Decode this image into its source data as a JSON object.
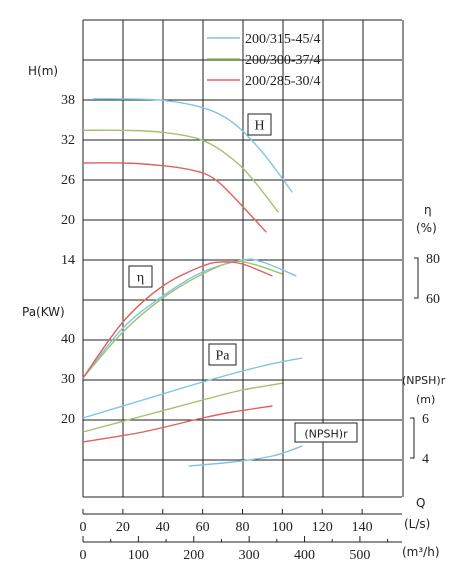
{
  "chart_data": {
    "type": "line",
    "title": "",
    "legend": [
      {
        "name": "200/315-45/4",
        "color": "#7ec4e6"
      },
      {
        "name": "200/300-37/4",
        "color": "#9ec36a"
      },
      {
        "name": "200/285-30/4",
        "color": "#e06060"
      }
    ],
    "legend_position": "top-right",
    "grid": true,
    "x_axis_q": {
      "label": "Q",
      "unit": "(L/s)",
      "ticks": [
        "0",
        "20",
        "40",
        "60",
        "80",
        "100",
        "120",
        "140"
      ],
      "range": [
        0,
        160
      ]
    },
    "x_axis_m3h": {
      "unit": "(m³/h)",
      "ticks": [
        "0",
        "100",
        "200",
        "300",
        "400",
        "500"
      ],
      "range": [
        0,
        576
      ]
    },
    "axis_head": {
      "label": "H(m)",
      "ticks": [
        "38",
        "32",
        "26",
        "20",
        "14"
      ]
    },
    "axis_power": {
      "label": "Pa(KW)",
      "ticks": [
        "40",
        "30",
        "20"
      ]
    },
    "axis_efficiency": {
      "label": "η",
      "unit": "(%)",
      "ticks": [
        "80",
        "60"
      ]
    },
    "axis_npsh": {
      "label": "(NPSH)r",
      "unit": "(m)",
      "ticks": [
        "6",
        "4"
      ]
    },
    "annotations": {
      "head_box": "H",
      "eff_box": "η",
      "power_box": "Pa",
      "npsh_box": "(NPSH)r"
    },
    "head_series": [
      {
        "name": "200/315-45/4",
        "color": "#7ec4e6",
        "points": [
          [
            5,
            38
          ],
          [
            20,
            38
          ],
          [
            40,
            37.8
          ],
          [
            60,
            36.7
          ],
          [
            75,
            34.5
          ],
          [
            90,
            30
          ],
          [
            105,
            24
          ]
        ]
      },
      {
        "name": "200/300-37/4",
        "color": "#9ec36a",
        "points": [
          [
            0,
            33.3
          ],
          [
            20,
            33.3
          ],
          [
            40,
            33
          ],
          [
            60,
            31.8
          ],
          [
            75,
            29
          ],
          [
            85,
            26
          ],
          [
            98,
            21
          ]
        ]
      },
      {
        "name": "200/285-30/4",
        "color": "#e06060",
        "points": [
          [
            0,
            28.4
          ],
          [
            20,
            28.4
          ],
          [
            40,
            28
          ],
          [
            55,
            27.3
          ],
          [
            65,
            26.2
          ],
          [
            75,
            23.5
          ],
          [
            92,
            18
          ]
        ]
      }
    ],
    "efficiency_series": [
      {
        "name": "200/315-45/4",
        "color": "#7ec4e6",
        "points": [
          [
            0,
            20
          ],
          [
            20,
            45
          ],
          [
            40,
            61
          ],
          [
            60,
            73
          ],
          [
            80,
            79
          ],
          [
            90,
            78
          ],
          [
            107,
            71
          ]
        ]
      },
      {
        "name": "200/300-37/4",
        "color": "#9ec36a",
        "points": [
          [
            0,
            20
          ],
          [
            20,
            43
          ],
          [
            40,
            60
          ],
          [
            60,
            72
          ],
          [
            75,
            78
          ],
          [
            85,
            77
          ],
          [
            100,
            72
          ]
        ]
      },
      {
        "name": "200/285-30/4",
        "color": "#e06060",
        "points": [
          [
            0,
            20
          ],
          [
            20,
            48
          ],
          [
            40,
            66
          ],
          [
            60,
            76
          ],
          [
            70,
            78
          ],
          [
            80,
            77
          ],
          [
            95,
            71
          ]
        ]
      }
    ],
    "power_series": [
      {
        "name": "200/315-45/4",
        "color": "#7ec4e6",
        "points": [
          [
            0,
            20
          ],
          [
            30,
            24.5
          ],
          [
            60,
            29
          ],
          [
            90,
            33
          ],
          [
            110,
            35
          ]
        ]
      },
      {
        "name": "200/300-37/4",
        "color": "#9ec36a",
        "points": [
          [
            0,
            16.5
          ],
          [
            30,
            20.5
          ],
          [
            60,
            24.5
          ],
          [
            80,
            27
          ],
          [
            100,
            28.7
          ]
        ]
      },
      {
        "name": "200/285-30/4",
        "color": "#e06060",
        "points": [
          [
            0,
            14
          ],
          [
            30,
            16.5
          ],
          [
            60,
            20
          ],
          [
            75,
            21.5
          ],
          [
            95,
            23
          ]
        ]
      }
    ],
    "npsh_series": [
      {
        "name": "200/315-45/4",
        "color": "#7ec4e6",
        "points": [
          [
            53,
            3.6
          ],
          [
            75,
            3.8
          ],
          [
            95,
            4.1
          ],
          [
            110,
            4.6
          ]
        ]
      }
    ]
  }
}
